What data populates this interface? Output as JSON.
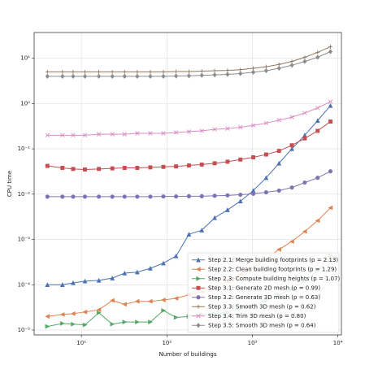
{
  "chart_data": {
    "type": "line",
    "xlabel": "Number of buildings",
    "ylabel": "CPU time",
    "log_x": true,
    "log_y": true,
    "grid": true,
    "legend": "lower right",
    "xlim": [
      2.8,
      11000
    ],
    "ylim": [
      7.8e-06,
      37
    ],
    "xticks": [
      {
        "value": 10,
        "label": "10¹"
      },
      {
        "value": 100,
        "label": "10²"
      },
      {
        "value": 1000,
        "label": "10³"
      },
      {
        "value": 10000,
        "label": "10⁴"
      }
    ],
    "yticks": [
      {
        "value": 1e-05,
        "label": "10⁻⁵"
      },
      {
        "value": 0.0001,
        "label": "10⁻⁴"
      },
      {
        "value": 0.001,
        "label": "10⁻³"
      },
      {
        "value": 0.01,
        "label": "10⁻²"
      },
      {
        "value": 0.1,
        "label": "10⁻¹"
      },
      {
        "value": 1,
        "label": "10⁰"
      },
      {
        "value": 10,
        "label": "10¹"
      }
    ],
    "x": [
      4,
      6,
      8,
      11,
      16,
      23,
      32,
      45,
      64,
      91,
      128,
      181,
      256,
      362,
      512,
      724,
      1024,
      1448,
      2048,
      2896,
      4096,
      5793,
      8192
    ],
    "series": [
      {
        "name": "Step 2.1: Merge building footprints (p = 2.13)",
        "color": "#4C72B0",
        "marker": "^",
        "values": [
          0.0001,
          0.0001,
          0.00011,
          0.00012,
          0.000125,
          0.00014,
          0.00018,
          0.00019,
          0.00023,
          0.0003,
          0.00043,
          0.0013,
          0.0016,
          0.003,
          0.0045,
          0.007,
          0.012,
          0.023,
          0.048,
          0.1,
          0.2,
          0.42,
          0.9
        ]
      },
      {
        "name": "Step 2.2: Clean building footprints (p = 1.29)",
        "color": "#DD8452",
        "marker": "<",
        "values": [
          2e-05,
          2.2e-05,
          2.3e-05,
          2.5e-05,
          2.8e-05,
          4.5e-05,
          3.7e-05,
          4.3e-05,
          4.3e-05,
          4.6e-05,
          5e-05,
          6e-05,
          7e-05,
          9e-05,
          0.00012,
          0.00017,
          0.00024,
          0.00037,
          0.0006,
          0.0009,
          0.0015,
          0.0026,
          0.005
        ]
      },
      {
        "name": "Step 2.3: Compute building heights (p = 1.07)",
        "color": "#55A868",
        "marker": ">",
        "values": [
          1.2e-05,
          1.4e-05,
          1.35e-05,
          1.3e-05,
          2.4e-05,
          1.35e-05,
          1.5e-05,
          1.5e-05,
          1.5e-05,
          2.7e-05,
          1.9e-05,
          2e-05,
          2.2e-05,
          2.3e-05,
          2.5e-05,
          3e-05,
          3.5e-05,
          4.5e-05,
          6e-05,
          8e-05,
          0.00012,
          0.0002,
          0.00045
        ]
      },
      {
        "name": "Step 3.1: Generate 2D mesh (p = 0.99)",
        "color": "#C44E52",
        "marker": "s",
        "values": [
          0.042,
          0.038,
          0.036,
          0.035,
          0.036,
          0.037,
          0.038,
          0.038,
          0.039,
          0.04,
          0.041,
          0.043,
          0.045,
          0.048,
          0.052,
          0.058,
          0.065,
          0.075,
          0.09,
          0.12,
          0.17,
          0.25,
          0.4
        ]
      },
      {
        "name": "Step 3.2: Generate 3D mesh (p = 0.63)",
        "color": "#8172B3",
        "marker": "o",
        "values": [
          0.0088,
          0.0088,
          0.0088,
          0.0088,
          0.0088,
          0.0088,
          0.0088,
          0.0088,
          0.0088,
          0.0089,
          0.0089,
          0.009,
          0.009,
          0.0092,
          0.0094,
          0.0097,
          0.0102,
          0.011,
          0.012,
          0.014,
          0.018,
          0.023,
          0.032
        ]
      },
      {
        "name": "Step 3.3: Smooth 3D mesh (p = 0.62)",
        "color": "#937860",
        "marker": "+",
        "values": [
          5,
          5,
          5,
          5,
          5,
          5,
          5,
          5,
          5,
          5,
          5.1,
          5.1,
          5.2,
          5.3,
          5.4,
          5.6,
          6,
          6.5,
          7.3,
          8.5,
          10.5,
          13.5,
          18
        ]
      },
      {
        "name": "Step 3.4: Trim 3D mesh (p = 0.80)",
        "color": "#DA8BC3",
        "marker": "x",
        "values": [
          0.2,
          0.2,
          0.2,
          0.2,
          0.21,
          0.21,
          0.21,
          0.22,
          0.22,
          0.22,
          0.23,
          0.24,
          0.25,
          0.27,
          0.28,
          0.3,
          0.33,
          0.37,
          0.43,
          0.5,
          0.62,
          0.8,
          1.1
        ]
      },
      {
        "name": "Step 3.5: Smooth 3D mesh (p = 0.64)",
        "color": "#8C8C8C",
        "marker": "D",
        "values": [
          4,
          4,
          4,
          4,
          4,
          4,
          4,
          4,
          4,
          4,
          4.05,
          4.1,
          4.2,
          4.3,
          4.4,
          4.6,
          4.9,
          5.3,
          6,
          7,
          8.5,
          10.5,
          14
        ]
      }
    ]
  }
}
